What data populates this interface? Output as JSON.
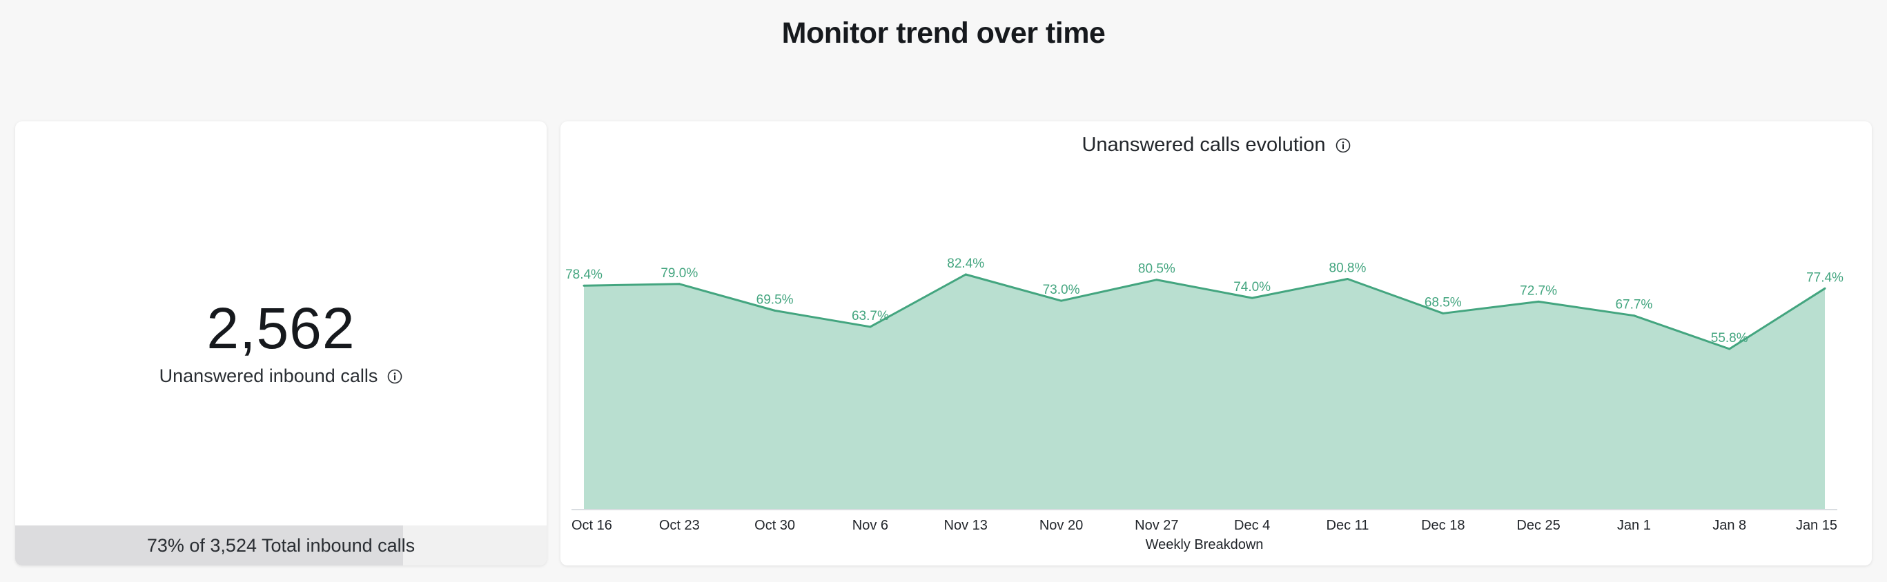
{
  "page": {
    "title": "Monitor trend over time"
  },
  "kpi": {
    "value": "2,562",
    "label": "Unanswered inbound calls",
    "info_icon": "info-icon",
    "footer_text": "73% of 3,524 Total inbound calls",
    "footer_fraction": 0.73
  },
  "colors": {
    "line": "#43a57f",
    "area": "#b9dfd0",
    "footer_fill": "#dcdcde"
  },
  "chart_data": {
    "type": "area",
    "title": "Unanswered calls evolution",
    "xlabel": "Weekly Breakdown",
    "ylabel": "",
    "categories": [
      "Oct 16",
      "Oct 23",
      "Oct 30",
      "Nov 6",
      "Nov 13",
      "Nov 20",
      "Nov 27",
      "Dec 4",
      "Dec 11",
      "Dec 18",
      "Dec 25",
      "Jan 1",
      "Jan 8",
      "Jan 15"
    ],
    "values": [
      78.4,
      79.0,
      69.5,
      63.7,
      82.4,
      73.0,
      80.5,
      74.0,
      80.8,
      68.5,
      72.7,
      67.7,
      55.8,
      77.4
    ],
    "value_labels": [
      "78.4%",
      "79.0%",
      "69.5%",
      "63.7%",
      "82.4%",
      "73.0%",
      "80.5%",
      "74.0%",
      "80.8%",
      "68.5%",
      "72.7%",
      "67.7%",
      "55.8%",
      "77.4%"
    ],
    "ylim": [
      0,
      100
    ],
    "grid": false,
    "legend": "none"
  }
}
